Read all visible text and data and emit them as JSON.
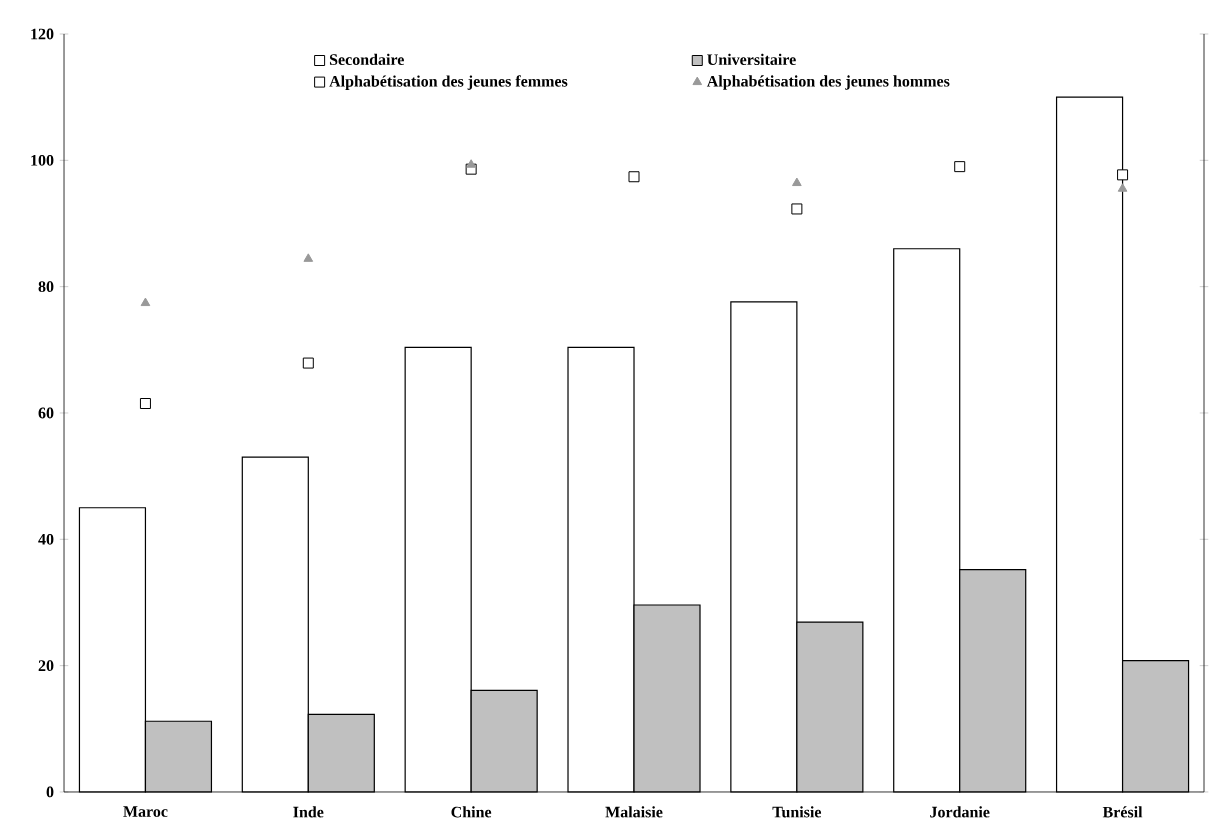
{
  "chart_data": {
    "type": "bar",
    "categories": [
      "Maroc",
      "Inde",
      "Chine",
      "Malaisie",
      "Tunisie",
      "Jordanie",
      "Brésil"
    ],
    "series": [
      {
        "name": "Secondaire",
        "color": "#ffffff",
        "values": [
          45,
          53,
          70.4,
          70.4,
          77.6,
          86,
          110
        ]
      },
      {
        "name": "Universitaire",
        "color": "#c0c0c0",
        "values": [
          11.2,
          12.3,
          16.1,
          29.6,
          26.9,
          35.2,
          20.8
        ]
      },
      {
        "name": "Alphabétisation des jeunes femmes",
        "type": "scatter",
        "marker": "square",
        "color": "#ffffff",
        "values": [
          61.5,
          67.9,
          98.6,
          97.4,
          92.3,
          99,
          97.7
        ]
      },
      {
        "name": "Alphabétisation des jeunes hommes",
        "type": "scatter",
        "marker": "triangle",
        "color": "#999999",
        "values": [
          77.4,
          84.4,
          99.3,
          null,
          96.4,
          null,
          95.5
        ]
      }
    ],
    "ylim": [
      0,
      120
    ],
    "yticks": [
      0,
      20,
      40,
      60,
      80,
      100,
      120
    ],
    "legend": "top",
    "grid": false
  }
}
